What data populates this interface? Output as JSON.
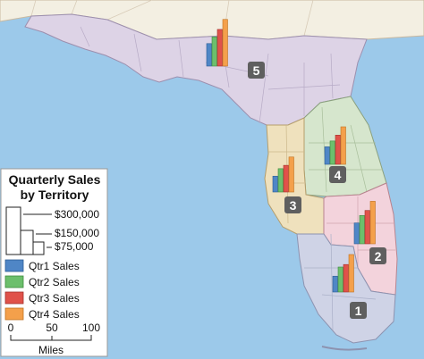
{
  "legend": {
    "title_line1": "Quarterly Sales",
    "title_line2": "by Territory",
    "size_labels": [
      "$300,000",
      "$150,000",
      "$75,000"
    ],
    "series": [
      {
        "label": "Qtr1 Sales",
        "color": "#4f86c6"
      },
      {
        "label": "Qtr2 Sales",
        "color": "#6cbf6c"
      },
      {
        "label": "Qtr3 Sales",
        "color": "#e0524a"
      },
      {
        "label": "Qtr4 Sales",
        "color": "#f4a04b"
      }
    ],
    "scale": {
      "ticks": [
        "0",
        "50",
        "100"
      ],
      "unit": "Miles"
    }
  },
  "territories": [
    {
      "id": "1",
      "fill": "#cfd3e6"
    },
    {
      "id": "2",
      "fill": "#f3d3dc"
    },
    {
      "id": "3",
      "fill": "#efe1bd"
    },
    {
      "id": "4",
      "fill": "#d6e6cd"
    },
    {
      "id": "5",
      "fill": "#ddd3e6"
    }
  ],
  "colors": {
    "water": "#9cc9ea",
    "northern_states": "#f3efe2"
  },
  "chart_data": {
    "type": "bar",
    "categories": [
      "1",
      "2",
      "3",
      "4",
      "5"
    ],
    "series": [
      {
        "name": "Qtr1 Sales",
        "values": [
          95000,
          125000,
          95000,
          105000,
          135000
        ]
      },
      {
        "name": "Qtr2 Sales",
        "values": [
          150000,
          170000,
          140000,
          140000,
          175000
        ]
      },
      {
        "name": "Qtr3 Sales",
        "values": [
          165000,
          200000,
          160000,
          175000,
          220000
        ]
      },
      {
        "name": "Qtr4 Sales",
        "values": [
          225000,
          255000,
          210000,
          225000,
          280000
        ]
      }
    ],
    "ylim": [
      0,
      300000
    ],
    "legend_position": "bottom-left"
  }
}
